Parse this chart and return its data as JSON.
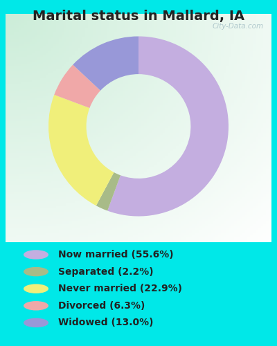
{
  "title": "Marital status in Mallard, IA",
  "categories": [
    "Now married",
    "Separated",
    "Never married",
    "Divorced",
    "Widowed"
  ],
  "values": [
    55.6,
    2.2,
    22.9,
    6.3,
    13.0
  ],
  "colors": [
    "#c4aee0",
    "#a8bb88",
    "#f0ef7a",
    "#f0a8a8",
    "#9898d8"
  ],
  "legend_labels": [
    "Now married (55.6%)",
    "Separated (2.2%)",
    "Never married (22.9%)",
    "Divorced (6.3%)",
    "Widowed (13.0%)"
  ],
  "bg_outer": "#00e8e8",
  "watermark": "City-Data.com",
  "title_fontsize": 14,
  "legend_fontsize": 10,
  "donut_width": 0.42,
  "start_angle": 90
}
